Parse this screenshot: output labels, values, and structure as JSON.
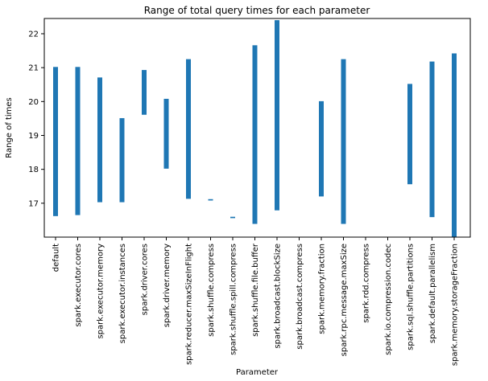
{
  "chart_data": {
    "type": "bar",
    "title": "Range of total query times for each parameter",
    "xlabel": "Parameter",
    "ylabel": "Range of times",
    "ylim": [
      16,
      22.45
    ],
    "yticks": [
      17,
      18,
      19,
      20,
      21,
      22
    ],
    "grid": false,
    "bar_color": "#1f77b4",
    "categories": [
      "default",
      "spark.executor.cores",
      "spark.executor.memory",
      "spark.executor.instances",
      "spark.driver.cores",
      "spark.driver.memory",
      "spark.reducer.maxSizeInFlight",
      "spark.shuffle.compress",
      "spark.shuffle.spill.compress",
      "spark.shuffle.file.buffer",
      "spark.broadcast.blockSize",
      "spark.broadcast.compress",
      "spark.memory.fraction",
      "spark.rpc.message.maxSize",
      "spark.rdd.compress",
      "spark.io.compression.codec",
      "spark.sql.shuffle.partitions",
      "spark.default.parallelism",
      "spark.memory.storageFraction"
    ],
    "ranges": [
      [
        16.62,
        21.02
      ],
      [
        16.65,
        21.02
      ],
      [
        17.03,
        20.71
      ],
      [
        17.03,
        19.51
      ],
      [
        19.61,
        20.93
      ],
      [
        18.02,
        20.08
      ],
      [
        17.13,
        21.25
      ],
      [
        17.08,
        17.12
      ],
      [
        16.56,
        16.6
      ],
      [
        16.39,
        21.66
      ],
      [
        16.79,
        22.4
      ],
      null,
      [
        17.2,
        20.01
      ],
      [
        16.39,
        21.25
      ],
      null,
      null,
      [
        17.56,
        20.52
      ],
      [
        16.59,
        21.18
      ],
      [
        16.0,
        21.42
      ]
    ]
  }
}
